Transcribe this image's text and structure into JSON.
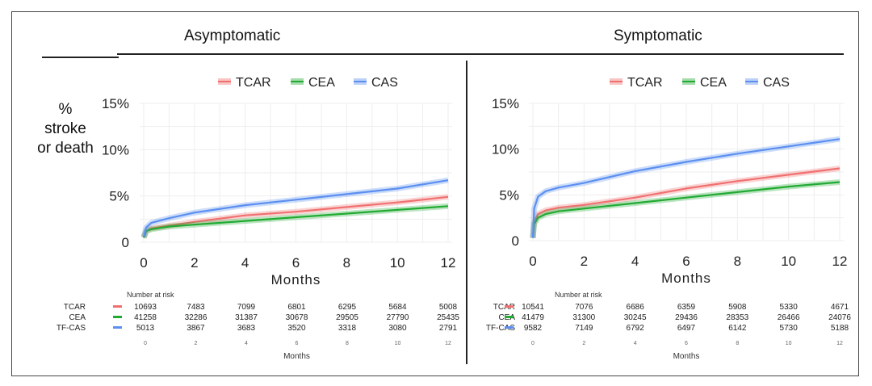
{
  "y_axis_label": "% stroke or death",
  "chart_data": [
    {
      "type": "line",
      "title": "Asymptomatic",
      "xlabel": "Months",
      "ylabel": "% stroke or death",
      "xlim": [
        0,
        12
      ],
      "ylim": [
        0,
        15
      ],
      "xticks": [
        0,
        2,
        4,
        6,
        8,
        10,
        12
      ],
      "yticks": [
        "0",
        "5%",
        "10%",
        "15%"
      ],
      "grid": true,
      "legend": "top",
      "series": [
        {
          "name": "TCAR",
          "color": "#f07070",
          "x": [
            0,
            0.1,
            0.3,
            1,
            2,
            4,
            6,
            8,
            10,
            12
          ],
          "y": [
            0.5,
            1.2,
            1.5,
            1.8,
            2.2,
            2.9,
            3.3,
            3.8,
            4.3,
            4.9
          ]
        },
        {
          "name": "CEA",
          "color": "#22aa33",
          "x": [
            0,
            0.1,
            0.3,
            1,
            2,
            4,
            6,
            8,
            10,
            12
          ],
          "y": [
            0.5,
            1.2,
            1.4,
            1.7,
            1.9,
            2.3,
            2.7,
            3.1,
            3.5,
            3.9
          ]
        },
        {
          "name": "CAS",
          "color": "#5b8ff0",
          "x": [
            0,
            0.1,
            0.3,
            1,
            2,
            4,
            6,
            8,
            10,
            12
          ],
          "y": [
            0.6,
            1.6,
            2.1,
            2.6,
            3.2,
            4.0,
            4.6,
            5.2,
            5.8,
            6.7
          ]
        }
      ],
      "risk_table": {
        "title": "Number at risk",
        "xlabel": "Months",
        "rows": [
          {
            "label": "TCAR",
            "values": [
              10693,
              7483,
              7099,
              6801,
              6295,
              5684,
              5008
            ]
          },
          {
            "label": "CEA",
            "values": [
              41258,
              32286,
              31387,
              30678,
              29505,
              27790,
              25435
            ]
          },
          {
            "label": "TF-CAS",
            "values": [
              5013,
              3867,
              3683,
              3520,
              3318,
              3080,
              2791
            ]
          }
        ]
      }
    },
    {
      "type": "line",
      "title": "Symptomatic",
      "xlabel": "Months",
      "ylabel": "",
      "xlim": [
        0,
        12
      ],
      "ylim": [
        0,
        15
      ],
      "xticks": [
        0,
        2,
        4,
        6,
        8,
        10,
        12
      ],
      "yticks": [
        "0",
        "5%",
        "10%",
        "15%"
      ],
      "grid": true,
      "legend": "top",
      "series": [
        {
          "name": "TCAR",
          "color": "#f07070",
          "x": [
            0,
            0.05,
            0.2,
            0.5,
            1,
            2,
            4,
            6,
            8,
            10,
            12
          ],
          "y": [
            0.3,
            2.0,
            2.9,
            3.3,
            3.6,
            3.9,
            4.7,
            5.7,
            6.5,
            7.2,
            7.9
          ]
        },
        {
          "name": "CEA",
          "color": "#22aa33",
          "x": [
            0,
            0.05,
            0.2,
            0.5,
            1,
            2,
            4,
            6,
            8,
            10,
            12
          ],
          "y": [
            0.3,
            1.8,
            2.5,
            2.9,
            3.2,
            3.5,
            4.1,
            4.7,
            5.3,
            5.9,
            6.4
          ]
        },
        {
          "name": "CAS",
          "color": "#5b8ff0",
          "x": [
            0,
            0.05,
            0.2,
            0.5,
            1,
            2,
            4,
            6,
            8,
            10,
            12
          ],
          "y": [
            0.3,
            3.5,
            4.8,
            5.4,
            5.8,
            6.3,
            7.6,
            8.6,
            9.5,
            10.3,
            11.1
          ]
        }
      ],
      "risk_table": {
        "title": "Number at risk",
        "xlabel": "Months",
        "rows": [
          {
            "label": "TCAR",
            "values": [
              10541,
              7076,
              6686,
              6359,
              5908,
              5330,
              4671
            ]
          },
          {
            "label": "CEA",
            "values": [
              41479,
              31300,
              30245,
              29436,
              28353,
              26466,
              24076
            ]
          },
          {
            "label": "TF-CAS",
            "values": [
              9582,
              7149,
              6792,
              6497,
              6142,
              5730,
              5188
            ]
          }
        ]
      }
    }
  ]
}
